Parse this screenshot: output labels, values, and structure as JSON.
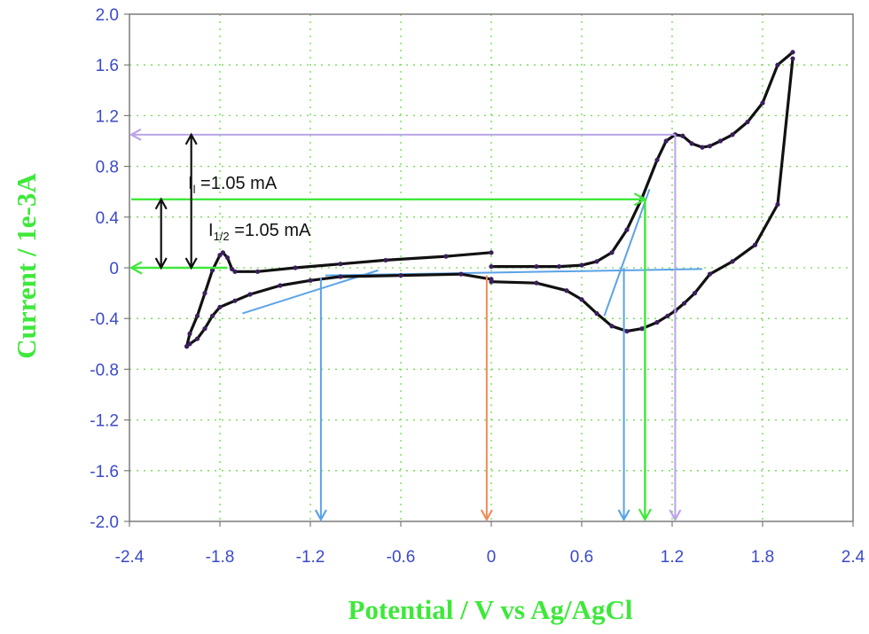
{
  "chart_data": {
    "type": "line",
    "title": "",
    "xlabel": "Potential / V vs Ag/AgCl",
    "ylabel": "Current / 1e-3A",
    "xlim": [
      -2.4,
      2.4
    ],
    "ylim": [
      -2.0,
      2.0
    ],
    "x_ticks": [
      "-2.4",
      "-1.8",
      "-1.2",
      "-0.6",
      "0",
      "0.6",
      "1.2",
      "1.8",
      "2.4"
    ],
    "y_ticks": [
      "2.0",
      "1.6",
      "1.2",
      "0.8",
      "0.4",
      "0",
      "-0.4",
      "-0.8",
      "-1.2",
      "-1.6",
      "-2.0"
    ],
    "grid": true,
    "colors": {
      "axis_ticks": "#3b49c9",
      "axis_labels": "#3ee83a",
      "grid": "#6ddc4a",
      "curve": "#111111",
      "curve_dots": "#3a1f5c",
      "tangent": "#5aa3e8",
      "green_arrow": "#3ee83a",
      "lavender_arrow": "#b9a4e8",
      "orange_arrow": "#f08c5a"
    },
    "series": [
      {
        "x": [
          0.0,
          -0.3,
          -0.7,
          -1.0,
          -1.3,
          -1.55,
          -1.7,
          -1.72,
          -1.75,
          -1.78,
          -1.8,
          -1.85,
          -1.9,
          -1.95,
          -2.0,
          -2.02
        ],
        "y": [
          0.12,
          0.09,
          0.06,
          0.03,
          0.0,
          -0.03,
          -0.03,
          -0.01,
          0.08,
          0.12,
          0.1,
          -0.02,
          -0.2,
          -0.38,
          -0.52,
          -0.62
        ]
      },
      {
        "x": [
          -2.02,
          -2.0,
          -1.95,
          -1.9,
          -1.85,
          -1.8,
          -1.7,
          -1.6,
          -1.4,
          -1.2,
          -1.0,
          -0.6,
          -0.2,
          0.0
        ],
        "y": [
          -0.62,
          -0.6,
          -0.56,
          -0.48,
          -0.38,
          -0.31,
          -0.26,
          -0.21,
          -0.14,
          -0.1,
          -0.07,
          -0.06,
          -0.05,
          -0.09
        ]
      },
      {
        "x": [
          0.0,
          0.3,
          0.5,
          0.6,
          0.7,
          0.8,
          0.9,
          1.0,
          1.1,
          1.17,
          1.22,
          1.28,
          1.35,
          1.45,
          1.6,
          1.75,
          1.9,
          2.0
        ],
        "y": [
          -0.11,
          -0.12,
          -0.18,
          -0.25,
          -0.36,
          -0.46,
          -0.5,
          -0.48,
          -0.43,
          -0.38,
          -0.34,
          -0.28,
          -0.2,
          -0.05,
          0.05,
          0.18,
          0.5,
          1.65
        ]
      },
      {
        "x": [
          2.0,
          1.9,
          1.8,
          1.7,
          1.6,
          1.52,
          1.45,
          1.4,
          1.33,
          1.27,
          1.22,
          1.16,
          1.1,
          1.0,
          0.9,
          0.8,
          0.7,
          0.6,
          0.45,
          0.3,
          0.0
        ],
        "y": [
          1.7,
          1.6,
          1.3,
          1.15,
          1.05,
          1.0,
          0.96,
          0.95,
          0.98,
          1.04,
          1.05,
          1.0,
          0.85,
          0.55,
          0.3,
          0.12,
          0.05,
          0.02,
          0.01,
          0.01,
          0.01
        ]
      }
    ],
    "annotations": {
      "il_prefix": "I",
      "il_sub": "l",
      "il_value": " =1.05 mA",
      "ihalf_prefix": "I",
      "ihalf_sub": "1/2",
      "ihalf_value": " =1.05 mA"
    }
  }
}
